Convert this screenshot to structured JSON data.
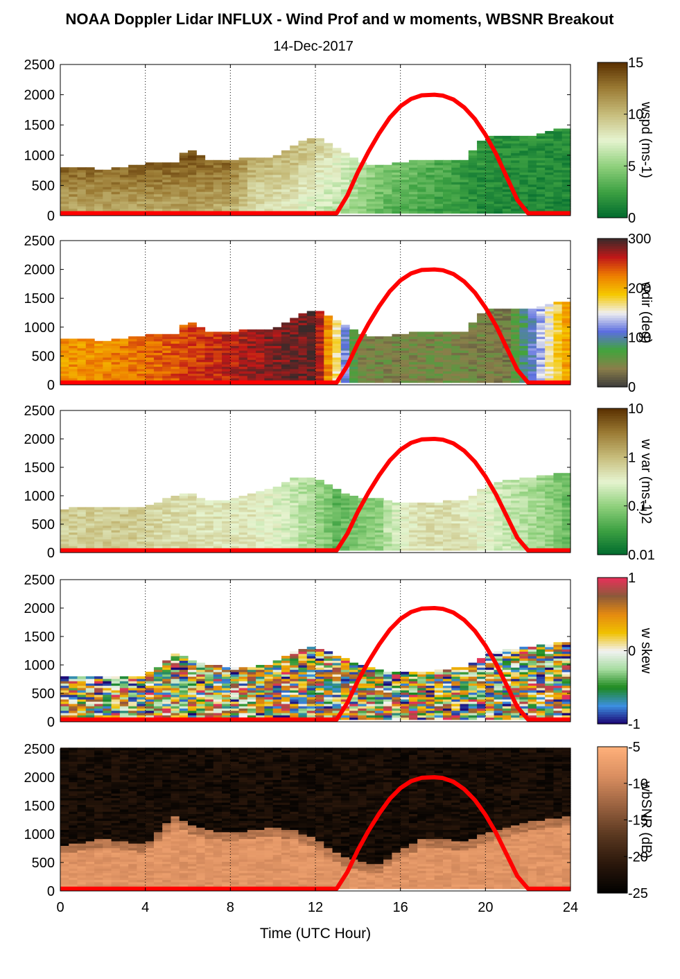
{
  "title": "NOAA Doppler Lidar INFLUX - Wind Prof and w moments, WBSNR Breakout",
  "subtitle": "14-Dec-2017",
  "xlabel": "Time (UTC Hour)",
  "chart_data": {
    "type": "heatmap",
    "xlim": [
      0,
      24
    ],
    "xticks": [
      "0",
      "4",
      "8",
      "12",
      "16",
      "20",
      "24"
    ],
    "ylim": [
      0,
      2500
    ],
    "yticks": [
      "0",
      "500",
      "1000",
      "1500",
      "2000",
      "2500"
    ],
    "grid": "vertical dotted lines every 4 hours",
    "overlay_curve": {
      "description": "solar elevation proxy (red)",
      "color": "#ff0000",
      "x": [
        0,
        13.0,
        13.5,
        14,
        14.5,
        15,
        15.5,
        16,
        16.5,
        17,
        17.6,
        18,
        18.5,
        19,
        19.5,
        20,
        20.5,
        21,
        21.5,
        22.0,
        22.3,
        24
      ],
      "y": [
        40,
        40,
        330,
        720,
        1060,
        1360,
        1620,
        1810,
        1930,
        1990,
        2000,
        1985,
        1920,
        1790,
        1600,
        1340,
        1020,
        640,
        260,
        40,
        40,
        40
      ]
    },
    "panels": [
      {
        "colorbar_label": "wspd (ms-1)",
        "colorbar_range": [
          0,
          15
        ],
        "colorbar_ticks": [
          "0",
          "5",
          "10",
          "15"
        ],
        "colormap": [
          "#006a2e",
          "#3da142",
          "#8fd07c",
          "#e6f4d0",
          "#c7bd7c",
          "#9c7c35",
          "#5a3000"
        ],
        "top_height": {
          "x": [
            0,
            2,
            4,
            5.5,
            6,
            7,
            8,
            9,
            10,
            11,
            12,
            13,
            14,
            15,
            16,
            17,
            18,
            19,
            20,
            21,
            22,
            23,
            24
          ],
          "y": [
            800,
            750,
            850,
            850,
            1100,
            900,
            900,
            950,
            920,
            1150,
            1300,
            1100,
            900,
            800,
            850,
            900,
            900,
            920,
            1300,
            1300,
            1300,
            1400,
            1450
          ]
        },
        "ramp": [
          {
            "x": 0,
            "v": 14
          },
          {
            "x": 6,
            "v": 14
          },
          {
            "x": 8,
            "v": 13.5
          },
          {
            "x": 9,
            "v": 11
          },
          {
            "x": 11,
            "v": 10
          },
          {
            "x": 13,
            "v": 8
          },
          {
            "x": 15,
            "v": 5
          },
          {
            "x": 18,
            "v": 3
          },
          {
            "x": 20,
            "v": 1.8
          },
          {
            "x": 24,
            "v": 1.5
          }
        ]
      },
      {
        "colorbar_label": "wdir (deg)",
        "colorbar_range": [
          0,
          360
        ],
        "colorbar_ticks": [
          "0",
          "100",
          "200",
          "300"
        ],
        "colormap": [
          "#3b3b3b",
          "#8a7e4a",
          "#41a53c",
          "#5c6ee0",
          "#f0f0f0",
          "#f5c800",
          "#ee7e00",
          "#c01818",
          "#3a2a2a"
        ],
        "top_height": {
          "x": [
            0,
            2,
            4,
            5.5,
            6,
            7,
            8,
            9,
            10,
            11,
            12,
            13,
            14,
            15,
            16,
            17,
            18,
            19,
            20,
            21,
            22,
            23,
            24
          ],
          "y": [
            800,
            750,
            850,
            850,
            1100,
            900,
            900,
            950,
            920,
            1150,
            1300,
            1100,
            900,
            800,
            850,
            900,
            900,
            920,
            1300,
            1300,
            1300,
            1400,
            1450
          ]
        },
        "ramp": [
          {
            "x": 0,
            "v": 255
          },
          {
            "x": 2,
            "v": 260
          },
          {
            "x": 4,
            "v": 275
          },
          {
            "x": 6,
            "v": 295
          },
          {
            "x": 8,
            "v": 315
          },
          {
            "x": 10,
            "v": 335
          },
          {
            "x": 12,
            "v": 350
          },
          {
            "x": 14,
            "v": 50
          },
          {
            "x": 18,
            "v": 55
          },
          {
            "x": 21,
            "v": 45
          },
          {
            "x": 24,
            "v": 260
          }
        ]
      },
      {
        "colorbar_label": "w var (ms-1)2",
        "colorbar_range": [
          0.01,
          10
        ],
        "colorbar_ticks": [
          "0.01",
          "0.1",
          "1",
          "10"
        ],
        "colormap": [
          "#006a2e",
          "#3da142",
          "#8fd07c",
          "#e6f4d0",
          "#c7bd7c",
          "#9c7c35",
          "#5a3000"
        ],
        "top_height": {
          "x": [
            0,
            2,
            4,
            6,
            7,
            8,
            9,
            10,
            11,
            12,
            13,
            14,
            15,
            16,
            17,
            18,
            19,
            20,
            21,
            22,
            23,
            24
          ],
          "y": [
            750,
            800,
            800,
            1050,
            900,
            900,
            1000,
            1100,
            1300,
            1300,
            1100,
            950,
            950,
            850,
            850,
            880,
            900,
            1150,
            1250,
            1300,
            1350,
            1380
          ]
        },
        "ramp": [
          {
            "x": 0,
            "v": 0.7
          },
          {
            "x": 3,
            "v": 0.75
          },
          {
            "x": 5,
            "v": 0.55
          },
          {
            "x": 7,
            "v": 0.45
          },
          {
            "x": 9,
            "v": 0.4
          },
          {
            "x": 11,
            "v": 0.2
          },
          {
            "x": 13,
            "v": 0.05
          },
          {
            "x": 15,
            "v": 0.1
          },
          {
            "x": 17,
            "v": 0.5
          },
          {
            "x": 19,
            "v": 0.45
          },
          {
            "x": 21,
            "v": 0.2
          },
          {
            "x": 24,
            "v": 0.05
          }
        ]
      },
      {
        "colorbar_label": "w skew",
        "colorbar_range": [
          -1,
          1
        ],
        "colorbar_ticks": [
          "-1",
          "0",
          "1"
        ],
        "colormap": [
          "#1a0070",
          "#3c8fe0",
          "#1e8a1e",
          "#a6dca0",
          "#f2f2f2",
          "#f0c000",
          "#e58a10",
          "#8c5a3a",
          "#e8305a"
        ],
        "top_height": {
          "x": [
            0,
            2,
            4,
            5.5,
            6,
            7,
            8,
            9,
            10,
            11,
            12,
            13,
            14,
            15,
            16,
            17,
            18,
            19,
            20,
            21,
            22,
            23,
            24
          ],
          "y": [
            780,
            780,
            800,
            1200,
            1100,
            1000,
            950,
            950,
            1000,
            1200,
            1300,
            1150,
            1000,
            900,
            850,
            850,
            900,
            950,
            1150,
            1250,
            1300,
            1350,
            1400
          ]
        },
        "ramp": [
          {
            "x": 0,
            "v": 0.3
          },
          {
            "x": 12,
            "v": 0.2
          },
          {
            "x": 24,
            "v": 0.3
          }
        ]
      },
      {
        "colorbar_label": "wbSNR (dB)",
        "colorbar_range": [
          -25,
          -5
        ],
        "colorbar_ticks": [
          "-25",
          "-20",
          "-15",
          "-10",
          "-5"
        ],
        "colormap": [
          "#000000",
          "#2a170b",
          "#5a3820",
          "#9a6240",
          "#d98e60",
          "#ffb07a"
        ],
        "top_height": {
          "x": [
            0,
            2,
            4,
            5.5,
            6,
            7,
            8,
            9,
            10,
            11,
            12,
            13,
            14,
            15,
            16,
            17,
            18,
            19,
            20,
            21,
            22,
            23,
            24
          ],
          "y": [
            780,
            900,
            800,
            1350,
            1150,
            1050,
            1000,
            1050,
            1100,
            1050,
            900,
            650,
            500,
            450,
            700,
            900,
            900,
            850,
            1000,
            1100,
            1200,
            1250,
            1300
          ]
        },
        "ramp": [
          {
            "x": 0,
            "v": -7
          },
          {
            "x": 24,
            "v": -7
          }
        ]
      }
    ]
  }
}
